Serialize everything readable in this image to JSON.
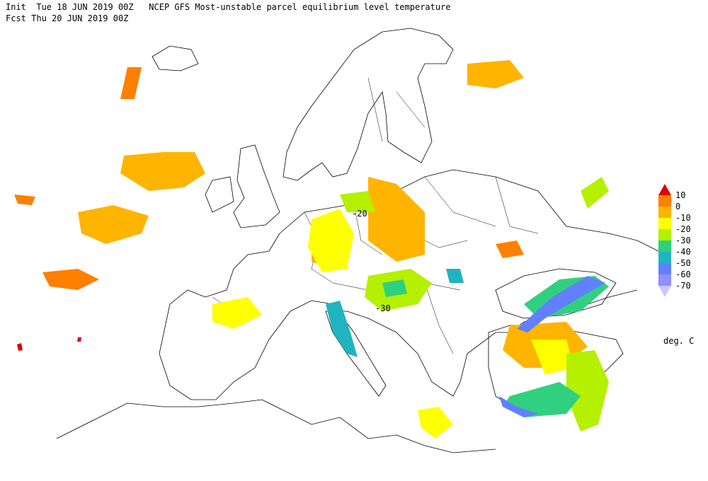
{
  "header": {
    "line1": "Init  Tue 18 JUN 2019 00Z   NCEP GFS Most-unstable parcel equilibrium level temperature",
    "line2": "Fcst Thu 20 JUN 2019 00Z"
  },
  "colorbar": {
    "levels": [
      10,
      0,
      -10,
      -20,
      -30,
      -40,
      -50,
      -60,
      -70
    ],
    "colors": [
      "#e00000",
      "#ff8000",
      "#ffb400",
      "#ffff00",
      "#b4f000",
      "#30d080",
      "#20b4c0",
      "#6080ff",
      "#9090ff",
      "#c8c8ff"
    ],
    "units": "deg. C"
  },
  "contour_labels": [
    "-20",
    "-30"
  ]
}
